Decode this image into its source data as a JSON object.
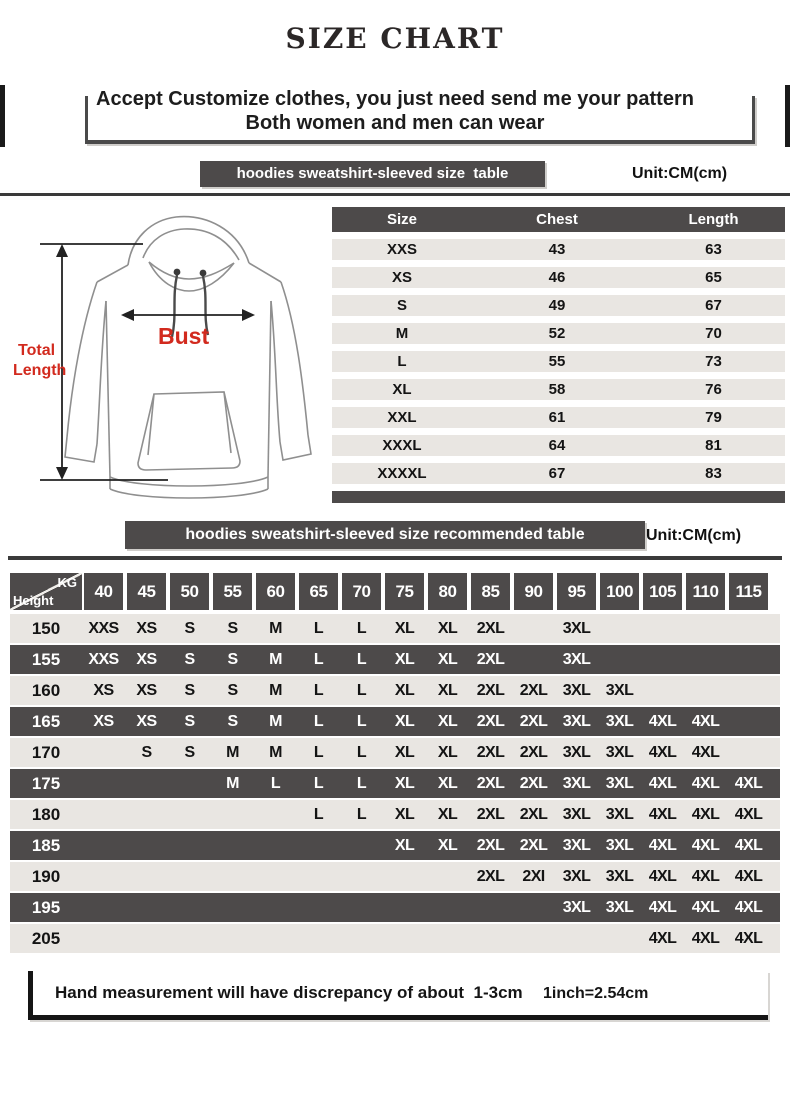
{
  "title": "SIZE CHART",
  "notice": {
    "line1": "Accept Customize clothes, you just need send me your pattern",
    "line2": "Both women and men can wear"
  },
  "section1": {
    "bar_label": "hoodies sweatshirt-sleeved size  table",
    "unit": "Unit:CM(cm)"
  },
  "section2": {
    "bar_label": "hoodies sweatshirt-sleeved size recommended table",
    "unit": "Unit:CM(cm)"
  },
  "diagram": {
    "bust_label": "Bust",
    "total_length": [
      "Total",
      "Length"
    ],
    "accent_red": "#d22a1e",
    "line_gray": "#8f8f8f"
  },
  "size_table": {
    "headers": [
      "Size",
      "Chest",
      "Length"
    ],
    "rows": [
      [
        "XXS",
        "43",
        "63"
      ],
      [
        "XS",
        "46",
        "65"
      ],
      [
        "S",
        "49",
        "67"
      ],
      [
        "M",
        "52",
        "70"
      ],
      [
        "L",
        "55",
        "73"
      ],
      [
        "XL",
        "58",
        "76"
      ],
      [
        "XXL",
        "61",
        "79"
      ],
      [
        "XXXL",
        "64",
        "81"
      ],
      [
        "XXXXL",
        "67",
        "83"
      ]
    ]
  },
  "reco_table": {
    "corner": {
      "top": "KG",
      "bottom": "Height"
    },
    "weights": [
      "40",
      "45",
      "50",
      "55",
      "60",
      "65",
      "70",
      "75",
      "80",
      "85",
      "90",
      "95",
      "100",
      "105",
      "110",
      "115"
    ],
    "rows": [
      {
        "height": "150",
        "cells": [
          "XXS",
          "XS",
          "S",
          "S",
          "M",
          "L",
          "L",
          "XL",
          "XL",
          "2XL",
          "",
          "3XL",
          "",
          "",
          "",
          ""
        ]
      },
      {
        "height": "155",
        "cells": [
          "XXS",
          "XS",
          "S",
          "S",
          "M",
          "L",
          "L",
          "XL",
          "XL",
          "2XL",
          "",
          "3XL",
          "",
          "",
          "",
          ""
        ]
      },
      {
        "height": "160",
        "cells": [
          "XS",
          "XS",
          "S",
          "S",
          "M",
          "L",
          "L",
          "XL",
          "XL",
          "2XL",
          "2XL",
          "3XL",
          "3XL",
          "",
          "",
          ""
        ]
      },
      {
        "height": "165",
        "cells": [
          "XS",
          "XS",
          "S",
          "S",
          "M",
          "L",
          "L",
          "XL",
          "XL",
          "2XL",
          "2XL",
          "3XL",
          "3XL",
          "4XL",
          "4XL",
          ""
        ]
      },
      {
        "height": "170",
        "cells": [
          "",
          "S",
          "S",
          "M",
          "M",
          "L",
          "L",
          "XL",
          "XL",
          "2XL",
          "2XL",
          "3XL",
          "3XL",
          "4XL",
          "4XL",
          ""
        ]
      },
      {
        "height": "175",
        "cells": [
          "",
          "",
          "",
          "M",
          "L",
          "L",
          "L",
          "XL",
          "XL",
          "2XL",
          "2XL",
          "3XL",
          "3XL",
          "4XL",
          "4XL",
          "4XL"
        ]
      },
      {
        "height": "180",
        "cells": [
          "",
          "",
          "",
          "",
          "",
          "L",
          "L",
          "XL",
          "XL",
          "2XL",
          "2XL",
          "3XL",
          "3XL",
          "4XL",
          "4XL",
          "4XL"
        ]
      },
      {
        "height": "185",
        "cells": [
          "",
          "",
          "",
          "",
          "",
          "",
          "",
          "XL",
          "XL",
          "2XL",
          "2XL",
          "3XL",
          "3XL",
          "4XL",
          "4XL",
          "4XL"
        ]
      },
      {
        "height": "190",
        "cells": [
          "",
          "",
          "",
          "",
          "",
          "",
          "",
          "",
          "",
          "2XL",
          "2XI",
          "3XL",
          "3XL",
          "4XL",
          "4XL",
          "4XL"
        ]
      },
      {
        "height": "195",
        "cells": [
          "",
          "",
          "",
          "",
          "",
          "",
          "",
          "",
          "",
          "",
          "",
          "3XL",
          "3XL",
          "4XL",
          "4XL",
          "4XL"
        ]
      },
      {
        "height": "205",
        "cells": [
          "",
          "",
          "",
          "",
          "",
          "",
          "",
          "",
          "",
          "",
          "",
          "",
          "",
          "4XL",
          "4XL",
          "4XL"
        ]
      }
    ]
  },
  "footer": {
    "note": "Hand measurement will have discrepancy of about  1-3cm",
    "conversion": "1inch=2.54cm"
  },
  "colors": {
    "dark_gray": "#4d4a4a",
    "light_row": "#e9e6e2",
    "divider": "#3a3a3a"
  }
}
